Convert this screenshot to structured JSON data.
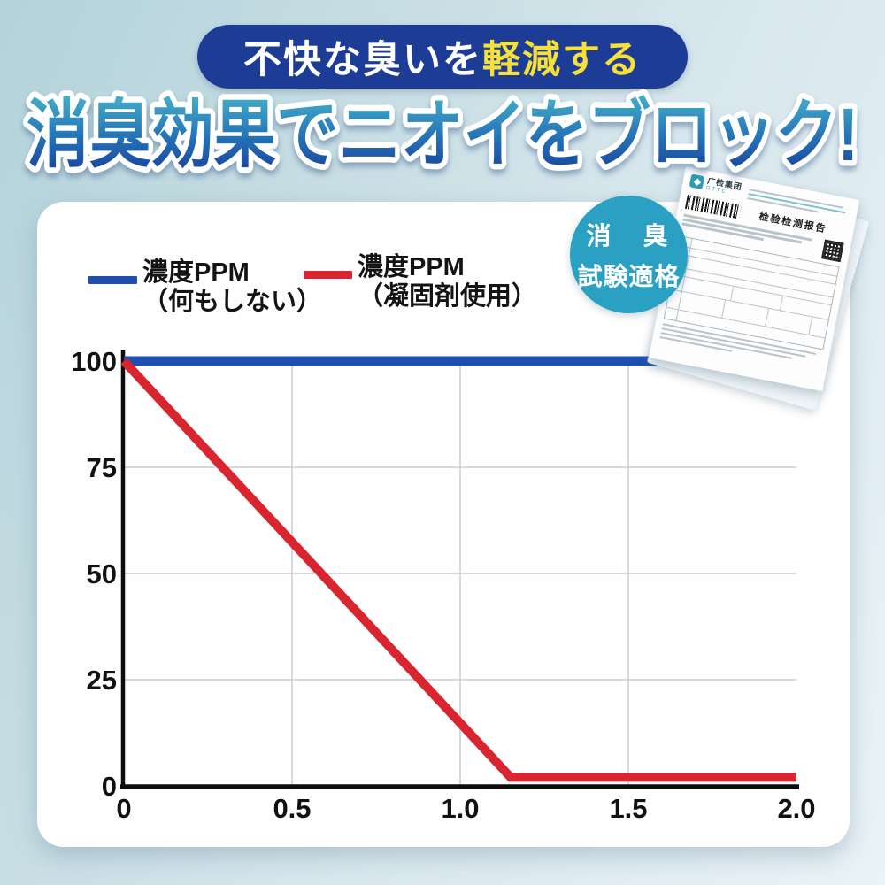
{
  "banner": {
    "text_main": "不快な臭いを",
    "text_highlight": "軽減する"
  },
  "title": {
    "text": "消臭効果でニオイをブロック!"
  },
  "legend": [
    {
      "label_line1": "濃度PPM",
      "label_line2": "（何もしない）",
      "color": "#1d4eb0"
    },
    {
      "label_line1": "濃度PPM",
      "label_line2": "（凝固剤使用）",
      "color": "#d8252f"
    }
  ],
  "badge": {
    "line1": "消　臭",
    "line2": "試験適格",
    "color": "#2aa1c2"
  },
  "certificate": {
    "org": "广检集团",
    "org_sub": "GTTC",
    "title": "检验检测报告"
  },
  "colors": {
    "banner_navy": "#1d3c96",
    "banner_yellow": "#f6e03a",
    "title_gradient_top": "#45b2cb",
    "title_gradient_bottom": "#1a3e99",
    "series_blue": "#1d4eb0",
    "series_red": "#d8252f",
    "grid": "#c9cdd0",
    "axis": "#0d0d0d"
  },
  "chart_data": {
    "type": "line",
    "title": "",
    "xlabel": "",
    "ylabel": "",
    "xlim": [
      0,
      2
    ],
    "ylim": [
      0,
      100
    ],
    "grid": true,
    "legend_position": "top-left",
    "x_ticks": [
      0,
      0.5,
      1.0,
      1.5,
      2.0
    ],
    "x_tick_labels": [
      "0",
      "0.5",
      "1.0",
      "1.5",
      "2.0"
    ],
    "y_ticks": [
      0,
      25,
      50,
      75,
      100
    ],
    "y_tick_labels": [
      "0",
      "25",
      "50",
      "75",
      "100"
    ],
    "series": [
      {
        "name": "濃度PPM（何もしない）",
        "color": "#1d4eb0",
        "width": 11,
        "points": [
          [
            0,
            100
          ],
          [
            2,
            100
          ]
        ]
      },
      {
        "name": "濃度PPM（凝固剤使用）",
        "color": "#d8252f",
        "width": 10,
        "points": [
          [
            0,
            100
          ],
          [
            1.15,
            2
          ],
          [
            2,
            2
          ]
        ]
      }
    ]
  }
}
